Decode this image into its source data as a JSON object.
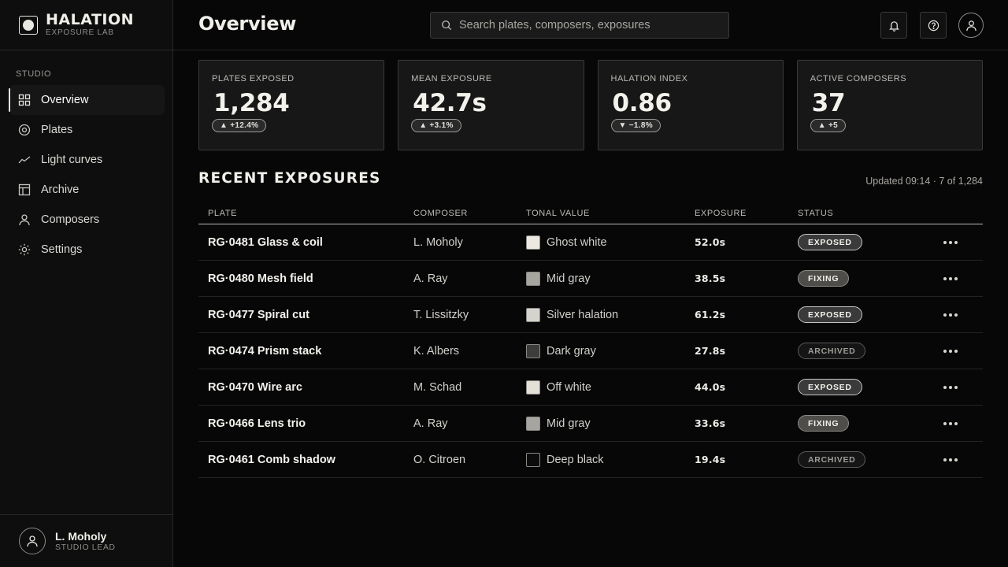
{
  "brand": {
    "name": "HALATION",
    "subtitle": "EXPOSURE LAB"
  },
  "sidebar": {
    "section_label": "STUDIO",
    "items": [
      {
        "label": "Overview",
        "icon": "grid-icon",
        "active": true
      },
      {
        "label": "Plates",
        "icon": "disc-icon",
        "active": false
      },
      {
        "label": "Light curves",
        "icon": "trend-icon",
        "active": false
      },
      {
        "label": "Archive",
        "icon": "layout-icon",
        "active": false
      },
      {
        "label": "Composers",
        "icon": "user-icon",
        "active": false
      },
      {
        "label": "Settings",
        "icon": "sun-icon",
        "active": false
      }
    ],
    "user": {
      "name": "L. Moholy",
      "role": "STUDIO LEAD"
    }
  },
  "header": {
    "title": "Overview",
    "search_placeholder": "Search plates, composers, exposures",
    "search_value": ""
  },
  "stats": [
    {
      "label": "PLATES EXPOSED",
      "value": "1,284",
      "delta": "▲ +12.4%"
    },
    {
      "label": "MEAN EXPOSURE",
      "value": "42.7s",
      "delta": "▲ +3.1%"
    },
    {
      "label": "HALATION INDEX",
      "value": "0.86",
      "delta": "▼ −1.8%"
    },
    {
      "label": "ACTIVE COMPOSERS",
      "value": "37",
      "delta": "▲ +5"
    }
  ],
  "recent": {
    "title": "RECENT EXPOSURES",
    "meta": "Updated 09:14 · 7 of 1,284",
    "columns": [
      "PLATE",
      "COMPOSER",
      "TONAL VALUE",
      "EXPOSURE",
      "STATUS"
    ],
    "rows": [
      {
        "plate": "RG·0481 Glass & coil",
        "composer": "L. Moholy",
        "tone": "Ghost white",
        "swatch": "#ece9e3",
        "exposure": "52.0s",
        "status": "EXPOSED"
      },
      {
        "plate": "RG·0480 Mesh field",
        "composer": "A. Ray",
        "tone": "Mid gray",
        "swatch": "#a7a59f",
        "exposure": "38.5s",
        "status": "FIXING"
      },
      {
        "plate": "RG·0477 Spiral cut",
        "composer": "T. Lissitzky",
        "tone": "Silver halation",
        "swatch": "#d5d3cd",
        "exposure": "61.2s",
        "status": "EXPOSED"
      },
      {
        "plate": "RG·0474 Prism stack",
        "composer": "K. Albers",
        "tone": "Dark gray",
        "swatch": "#3d3d3b",
        "exposure": "27.8s",
        "status": "ARCHIVED"
      },
      {
        "plate": "RG·0470 Wire arc",
        "composer": "M. Schad",
        "tone": "Off white",
        "swatch": "#e3e0d8",
        "exposure": "44.0s",
        "status": "EXPOSED"
      },
      {
        "plate": "RG·0466 Lens trio",
        "composer": "A. Ray",
        "tone": "Mid gray",
        "swatch": "#a7a59f",
        "exposure": "33.6s",
        "status": "FIXING"
      },
      {
        "plate": "RG·0461 Comb shadow",
        "composer": "O. Citroen",
        "tone": "Deep black",
        "swatch": "#0b0b0b",
        "exposure": "19.4s",
        "status": "ARCHIVED"
      }
    ]
  },
  "colors": {
    "background": "#070707",
    "panel": "#0e0e0e",
    "card": "#171717",
    "text": "#e8e6e1"
  }
}
